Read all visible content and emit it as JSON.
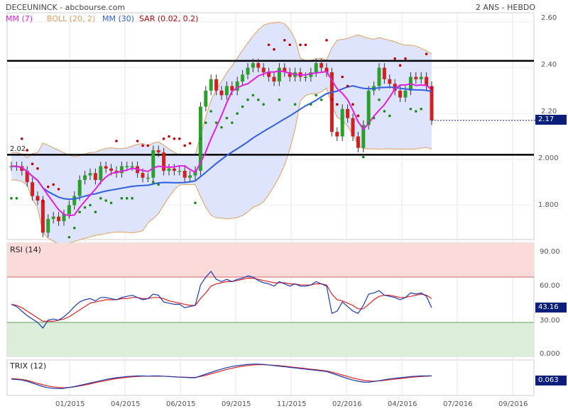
{
  "header": {
    "left": "DECEUNINCK - abcbourse.com",
    "right": "2 ANS - HEBDO"
  },
  "legend": [
    {
      "label": "MM (7)",
      "color": "#e020e0"
    },
    {
      "label": "BOLL (20, 2)",
      "color": "#e0a060"
    },
    {
      "label": "MM (30)",
      "color": "#3060e0"
    },
    {
      "label": "SAR (0.02, 0.2)",
      "color": "#c00000"
    }
  ],
  "panels": {
    "rsi": "RSI (14)",
    "trix": "TRIX (12)"
  },
  "x_ticks": [
    "01/2015",
    "04/2015",
    "06/2015",
    "09/2015",
    "11/2015",
    "02/2016",
    "04/2016",
    "07/2016",
    "09/2016"
  ],
  "price_ticks": [
    "2.60",
    "2.40",
    "2.20",
    "2.000",
    "1.800"
  ],
  "rsi_ticks": [
    "90.00",
    "60.00",
    "30.00",
    "0.000"
  ],
  "colors": {
    "up": "#2aa02a",
    "down": "#d02020",
    "boll_fill": "#dde4fb",
    "boll_line": "#e0a060",
    "mm7": "#e020e0",
    "mm30": "#3060e0",
    "sar_down": "#c00000",
    "sar_up": "#1a8a1a",
    "rsi_zone_hi": "#fbdada",
    "rsi_zone_lo": "#daeeda",
    "badge": "#0b1f7a"
  },
  "chart_data": [
    {
      "type": "candlestick",
      "x": [
        "2014-11-07",
        "2014-11-14",
        "2014-11-21",
        "2014-11-28",
        "2014-12-05",
        "2014-12-12",
        "2014-12-19",
        "2014-12-26",
        "2015-01-02",
        "2015-01-09",
        "2015-01-16",
        "2015-01-23",
        "2015-01-30",
        "2015-02-06",
        "2015-02-13",
        "2015-02-20",
        "2015-02-27",
        "2015-03-06",
        "2015-03-13",
        "2015-03-20",
        "2015-03-27",
        "2015-04-03",
        "2015-04-10",
        "2015-04-17",
        "2015-04-24",
        "2015-05-01",
        "2015-05-08",
        "2015-05-15",
        "2015-05-22",
        "2015-05-29",
        "2015-06-05",
        "2015-06-12",
        "2015-06-19",
        "2015-06-26",
        "2015-07-03",
        "2015-07-10",
        "2015-07-17",
        "2015-07-24",
        "2015-07-31",
        "2015-08-07",
        "2015-08-14",
        "2015-08-21",
        "2015-08-28",
        "2015-09-04",
        "2015-09-11",
        "2015-09-18",
        "2015-09-25",
        "2015-10-02",
        "2015-10-09",
        "2015-10-16",
        "2015-10-23",
        "2015-10-30",
        "2015-11-06",
        "2015-11-13",
        "2015-11-20",
        "2015-11-27",
        "2015-12-04",
        "2015-12-11",
        "2015-12-18",
        "2015-12-25",
        "2016-01-01",
        "2016-01-08",
        "2016-01-15",
        "2016-01-22",
        "2016-01-29",
        "2016-02-05",
        "2016-02-12",
        "2016-02-19",
        "2016-02-26",
        "2016-03-04",
        "2016-03-11",
        "2016-03-18",
        "2016-03-25",
        "2016-04-01",
        "2016-04-08",
        "2016-04-15",
        "2016-04-22",
        "2016-04-29",
        "2016-05-06",
        "2016-05-13",
        "2016-05-20"
      ],
      "close": [
        1.97,
        1.97,
        1.95,
        1.9,
        1.84,
        1.82,
        1.68,
        1.74,
        1.75,
        1.73,
        1.76,
        1.8,
        1.84,
        1.91,
        1.93,
        1.94,
        1.91,
        1.97,
        1.96,
        1.95,
        1.94,
        1.97,
        1.97,
        1.97,
        1.94,
        1.92,
        1.92,
        2.04,
        2.03,
        1.95,
        1.96,
        1.95,
        1.95,
        1.92,
        1.93,
        1.95,
        2.23,
        2.3,
        2.35,
        2.3,
        2.28,
        2.32,
        2.3,
        2.34,
        2.37,
        2.4,
        2.42,
        2.4,
        2.38,
        2.36,
        2.34,
        2.4,
        2.38,
        2.36,
        2.38,
        2.36,
        2.36,
        2.38,
        2.42,
        2.4,
        2.38,
        2.12,
        2.1,
        2.22,
        2.18,
        2.1,
        2.05,
        2.15,
        2.3,
        2.32,
        2.4,
        2.35,
        2.33,
        2.3,
        2.27,
        2.3,
        2.36,
        2.35,
        2.36,
        2.32,
        2.17
      ],
      "ylim": [
        1.65,
        2.64
      ],
      "y_label": "2.02",
      "last_label": "2.17",
      "resistance": 2.43,
      "support": 2.02
    },
    {
      "type": "line",
      "name": "RSI (14)",
      "ylim": [
        0,
        100
      ],
      "zones": [
        70,
        30
      ],
      "last_label": "43.16",
      "values": [
        46,
        44,
        40,
        36,
        33,
        30,
        25,
        32,
        33,
        32,
        35,
        39,
        44,
        48,
        50,
        51,
        49,
        52,
        52,
        51,
        50,
        52,
        53,
        54,
        52,
        50,
        51,
        55,
        54,
        48,
        47,
        46,
        46,
        43,
        44,
        45,
        63,
        70,
        75,
        68,
        66,
        68,
        66,
        68,
        69,
        71,
        70,
        67,
        65,
        64,
        62,
        66,
        64,
        62,
        64,
        62,
        62,
        63,
        66,
        64,
        62,
        38,
        40,
        48,
        44,
        40,
        38,
        45,
        55,
        56,
        58,
        54,
        53,
        52,
        50,
        52,
        56,
        55,
        56,
        53,
        43
      ],
      "signal": [
        46,
        45,
        43,
        40,
        37,
        34,
        31,
        31,
        31,
        32,
        33,
        35,
        38,
        41,
        44,
        47,
        48,
        49,
        50,
        50,
        50,
        51,
        51,
        52,
        52,
        51,
        51,
        52,
        52,
        51,
        49,
        48,
        47,
        46,
        45,
        45,
        51,
        56,
        62,
        64,
        65,
        66,
        66,
        67,
        68,
        69,
        69,
        68,
        67,
        66,
        65,
        65,
        65,
        64,
        64,
        63,
        63,
        63,
        64,
        64,
        63,
        55,
        50,
        49,
        47,
        45,
        42,
        42,
        46,
        50,
        53,
        54,
        54,
        53,
        52,
        52,
        53,
        54,
        55,
        54,
        51
      ]
    },
    {
      "type": "line",
      "name": "TRIX (12)",
      "last_label": "0.063",
      "ylim": [
        -0.6,
        0.6
      ],
      "values": [
        -0.05,
        -0.06,
        -0.08,
        -0.12,
        -0.18,
        -0.24,
        -0.3,
        -0.34,
        -0.36,
        -0.37,
        -0.36,
        -0.33,
        -0.3,
        -0.26,
        -0.22,
        -0.18,
        -0.14,
        -0.1,
        -0.06,
        -0.03,
        0.0,
        0.02,
        0.04,
        0.05,
        0.06,
        0.06,
        0.05,
        0.06,
        0.06,
        0.05,
        0.04,
        0.03,
        0.02,
        0.01,
        0.0,
        0.0,
        0.06,
        0.12,
        0.18,
        0.24,
        0.29,
        0.34,
        0.38,
        0.41,
        0.43,
        0.45,
        0.46,
        0.46,
        0.45,
        0.43,
        0.41,
        0.39,
        0.37,
        0.35,
        0.33,
        0.31,
        0.29,
        0.27,
        0.25,
        0.23,
        0.21,
        0.15,
        0.09,
        0.03,
        -0.03,
        -0.08,
        -0.12,
        -0.15,
        -0.15,
        -0.13,
        -0.1,
        -0.07,
        -0.04,
        -0.02,
        0.0,
        0.02,
        0.04,
        0.05,
        0.06,
        0.06,
        0.063
      ],
      "signal": [
        -0.03,
        -0.04,
        -0.06,
        -0.09,
        -0.14,
        -0.19,
        -0.24,
        -0.28,
        -0.31,
        -0.33,
        -0.34,
        -0.33,
        -0.31,
        -0.28,
        -0.25,
        -0.21,
        -0.17,
        -0.13,
        -0.1,
        -0.06,
        -0.03,
        -0.01,
        0.01,
        0.03,
        0.04,
        0.05,
        0.05,
        0.05,
        0.05,
        0.05,
        0.04,
        0.03,
        0.02,
        0.02,
        0.01,
        0.01,
        0.04,
        0.08,
        0.13,
        0.18,
        0.23,
        0.28,
        0.32,
        0.36,
        0.39,
        0.41,
        0.43,
        0.44,
        0.44,
        0.43,
        0.42,
        0.41,
        0.39,
        0.37,
        0.35,
        0.33,
        0.31,
        0.29,
        0.27,
        0.25,
        0.23,
        0.19,
        0.14,
        0.09,
        0.04,
        -0.01,
        -0.05,
        -0.09,
        -0.11,
        -0.12,
        -0.11,
        -0.09,
        -0.07,
        -0.05,
        -0.03,
        -0.01,
        0.01,
        0.03,
        0.04,
        0.05,
        0.06
      ]
    }
  ]
}
